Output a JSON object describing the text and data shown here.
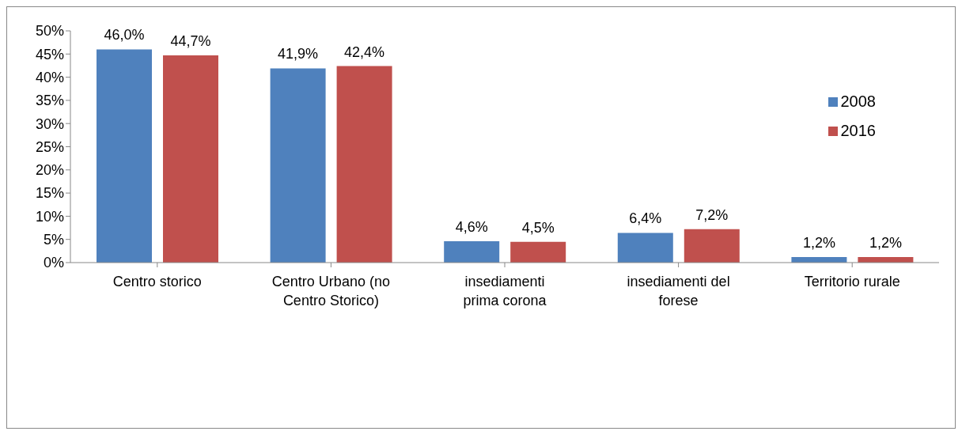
{
  "chart_data": {
    "type": "bar",
    "categories": [
      "Centro storico",
      "Centro Urbano (no Centro Storico)",
      "insediamenti prima corona",
      "insediamenti del forese",
      "Territorio rurale"
    ],
    "series": [
      {
        "name": "2008",
        "color": "#4f81bd",
        "values": [
          46.0,
          41.9,
          4.6,
          6.4,
          1.2
        ],
        "value_labels": [
          "46,0%",
          "41,9%",
          "4,6%",
          "6,4%",
          "1,2%"
        ]
      },
      {
        "name": "2016",
        "color": "#c0504d",
        "values": [
          44.7,
          42.4,
          4.5,
          7.2,
          1.2
        ],
        "value_labels": [
          "44,7%",
          "42,4%",
          "4,5%",
          "7,2%",
          "1,2%"
        ]
      }
    ],
    "ylim": [
      0,
      50
    ],
    "yticks": [
      {
        "value": 0,
        "label": "0%"
      },
      {
        "value": 5,
        "label": "5%"
      },
      {
        "value": 10,
        "label": "10%"
      },
      {
        "value": 15,
        "label": "15%"
      },
      {
        "value": 20,
        "label": "20%"
      },
      {
        "value": 25,
        "label": "25%"
      },
      {
        "value": 30,
        "label": "30%"
      },
      {
        "value": 35,
        "label": "35%"
      },
      {
        "value": 40,
        "label": "40%"
      },
      {
        "value": 45,
        "label": "45%"
      },
      {
        "value": 50,
        "label": "50%"
      }
    ],
    "grid": false,
    "legend": "right"
  }
}
